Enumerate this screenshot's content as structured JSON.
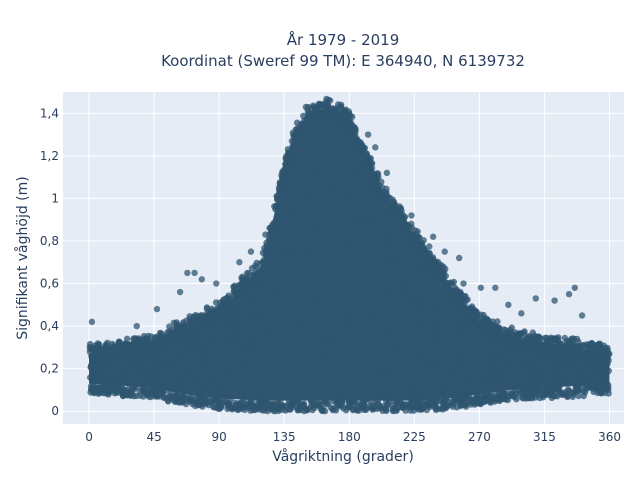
{
  "chart_data": {
    "type": "scatter",
    "title_line1": "År 1979 - 2019",
    "title_line2": "Koordinat (Sweref 99 TM): E 364940, N 6139732",
    "xlabel": "Vågriktning (grader)",
    "ylabel": "Signifikant våghöjd (m)",
    "xlim": [
      -18,
      370
    ],
    "ylim": [
      -0.06,
      1.5
    ],
    "xticks": [
      0,
      45,
      90,
      135,
      180,
      225,
      270,
      315,
      360
    ],
    "xtick_labels": [
      "0",
      "45",
      "90",
      "135",
      "180",
      "225",
      "270",
      "315",
      "360"
    ],
    "yticks": [
      0,
      0.2,
      0.4,
      0.6,
      0.8,
      1,
      1.2,
      1.4
    ],
    "ytick_labels": [
      "0",
      "0,2",
      "0,4",
      "0,6",
      "0,8",
      "1",
      "1,2",
      "1,4"
    ],
    "grid": true,
    "marker_color": "#2f5570",
    "plot_bg": "#e5ecf6",
    "envelope": {
      "x": [
        0,
        45,
        65,
        90,
        120,
        140,
        150,
        165,
        180,
        200,
        225,
        250,
        270,
        290,
        315,
        340,
        360
      ],
      "y_upper": [
        0.3,
        0.35,
        0.42,
        0.5,
        0.72,
        1.3,
        1.42,
        1.46,
        1.4,
        1.1,
        0.85,
        0.62,
        0.45,
        0.38,
        0.35,
        0.32,
        0.3
      ],
      "y_lower": [
        0.1,
        0.08,
        0.05,
        0.03,
        0.02,
        0.02,
        0.02,
        0.02,
        0.02,
        0.02,
        0.02,
        0.03,
        0.05,
        0.07,
        0.08,
        0.09,
        0.1
      ]
    },
    "outliers": [
      {
        "x": 2,
        "y": 0.42
      },
      {
        "x": 33,
        "y": 0.4
      },
      {
        "x": 47,
        "y": 0.48
      },
      {
        "x": 63,
        "y": 0.56
      },
      {
        "x": 68,
        "y": 0.65
      },
      {
        "x": 73,
        "y": 0.65
      },
      {
        "x": 78,
        "y": 0.62
      },
      {
        "x": 88,
        "y": 0.6
      },
      {
        "x": 104,
        "y": 0.7
      },
      {
        "x": 112,
        "y": 0.75
      },
      {
        "x": 122,
        "y": 0.83
      },
      {
        "x": 131,
        "y": 0.88
      },
      {
        "x": 137,
        "y": 1.05
      },
      {
        "x": 139,
        "y": 1.17
      },
      {
        "x": 147,
        "y": 1.35
      },
      {
        "x": 193,
        "y": 1.3
      },
      {
        "x": 198,
        "y": 1.24
      },
      {
        "x": 206,
        "y": 1.12
      },
      {
        "x": 223,
        "y": 0.92
      },
      {
        "x": 238,
        "y": 0.82
      },
      {
        "x": 246,
        "y": 0.75
      },
      {
        "x": 256,
        "y": 0.72
      },
      {
        "x": 259,
        "y": 0.6
      },
      {
        "x": 271,
        "y": 0.58
      },
      {
        "x": 281,
        "y": 0.58
      },
      {
        "x": 290,
        "y": 0.5
      },
      {
        "x": 299,
        "y": 0.46
      },
      {
        "x": 309,
        "y": 0.53
      },
      {
        "x": 322,
        "y": 0.52
      },
      {
        "x": 332,
        "y": 0.55
      },
      {
        "x": 336,
        "y": 0.58
      },
      {
        "x": 341,
        "y": 0.45
      }
    ]
  }
}
